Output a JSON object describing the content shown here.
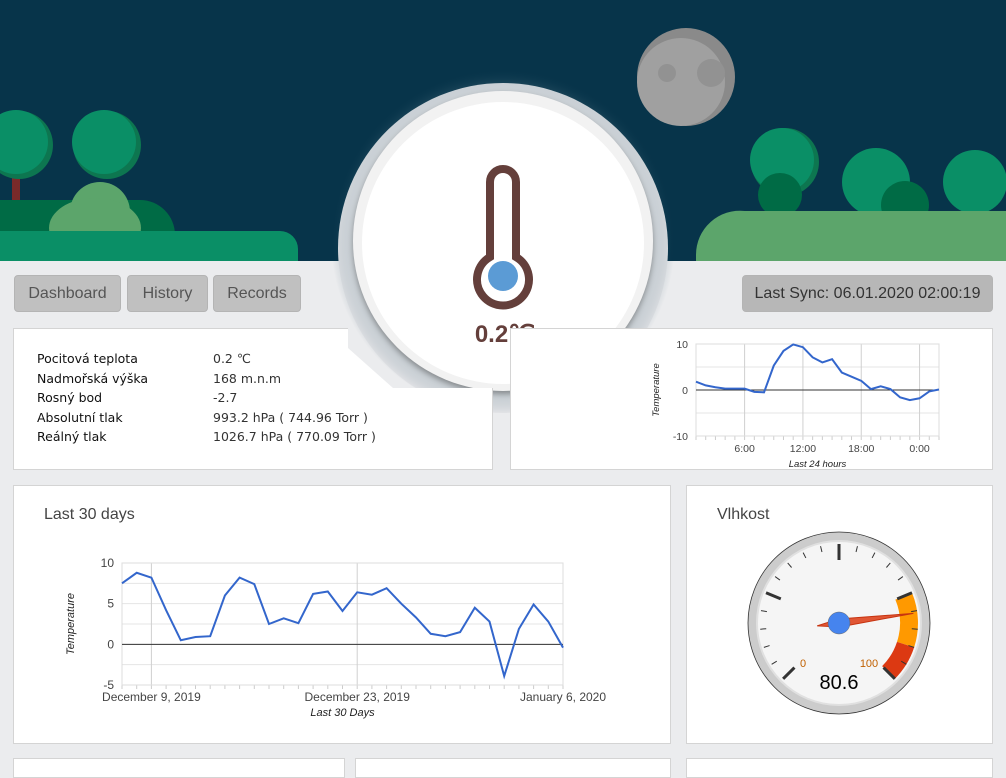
{
  "header": {
    "current_temp": "0.2℃",
    "colors": {
      "sky": "#07344a",
      "tree": "#0a8f66",
      "bush": "#5ca56b",
      "thermometer": "#643f3b",
      "bulb": "#5b9bd5"
    }
  },
  "nav": {
    "items": [
      {
        "label": "Dashboard"
      },
      {
        "label": "History"
      },
      {
        "label": "Records"
      }
    ],
    "last_sync": "Last Sync: 06.01.2020 02:00:19"
  },
  "info": {
    "rows": [
      {
        "label": "Pocitová teplota",
        "value": "0.2 ℃"
      },
      {
        "label": "Nadmořská výška",
        "value": "168 m.n.m"
      },
      {
        "label": "Rosný bod",
        "value": "-2.7"
      },
      {
        "label": "Absolutní tlak",
        "value": "993.2 hPa ( 744.96 Torr )"
      },
      {
        "label": "Reálný tlak",
        "value": "1026.7 hPa ( 770.09 Torr )"
      }
    ]
  },
  "monthly": {
    "title": "Last 30 days"
  },
  "humidity": {
    "title": "Vlhkost"
  },
  "chart_data": [
    {
      "type": "line",
      "xlabel": "Last 24 hours",
      "ylabel": "Temperature",
      "ylim": [
        -10,
        10
      ],
      "yticks": [
        "10",
        "0",
        "-10"
      ],
      "xticks": [
        "6:00",
        "12:00",
        "18:00",
        "0:00"
      ],
      "x": [
        "1:00",
        "2:00",
        "3:00",
        "4:00",
        "5:00",
        "6:00",
        "7:00",
        "8:00",
        "9:00",
        "10:00",
        "11:00",
        "12:00",
        "13:00",
        "14:00",
        "15:00",
        "16:00",
        "17:00",
        "18:00",
        "19:00",
        "20:00",
        "21:00",
        "22:00",
        "23:00",
        "0:00",
        "1:00",
        "2:00"
      ],
      "values": [
        1.8,
        1.0,
        0.6,
        0.3,
        0.3,
        0.3,
        -0.4,
        -0.5,
        5.3,
        8.5,
        9.9,
        9.3,
        7.1,
        6.0,
        6.7,
        3.8,
        2.9,
        2.0,
        0.2,
        0.8,
        0.2,
        -1.6,
        -2.2,
        -1.8,
        -0.3,
        0.1
      ],
      "color": "#3366cc",
      "grid": true
    },
    {
      "type": "line",
      "xlabel": "Last 30 Days",
      "ylabel": "Temperature",
      "ylim": [
        -5,
        10
      ],
      "yticks": [
        "10",
        "5",
        "0",
        "-5"
      ],
      "xticks": [
        "December 9, 2019",
        "December 23, 2019",
        "January 6, 2020"
      ],
      "x_start": "December 7, 2019",
      "x_end": "January 6, 2020",
      "values": [
        7.5,
        8.8,
        8.2,
        4.2,
        0.5,
        0.9,
        1.0,
        6.0,
        8.2,
        7.4,
        2.5,
        3.2,
        2.6,
        6.2,
        6.5,
        4.1,
        6.4,
        6.1,
        6.9,
        5.0,
        3.3,
        1.3,
        1.0,
        1.5,
        4.5,
        2.8,
        -3.9,
        1.9,
        4.9,
        2.8,
        -0.4
      ],
      "color": "#3366cc",
      "grid": true
    },
    {
      "type": "gauge",
      "value": 80.6,
      "min": 0,
      "max": 100,
      "label_min": "0",
      "label_max": "100",
      "value_label": "80.6",
      "bands": [
        {
          "from": 75,
          "to": 90,
          "color": "#ff9900"
        },
        {
          "from": 90,
          "to": 100,
          "color": "#dc3912"
        }
      ]
    }
  ]
}
